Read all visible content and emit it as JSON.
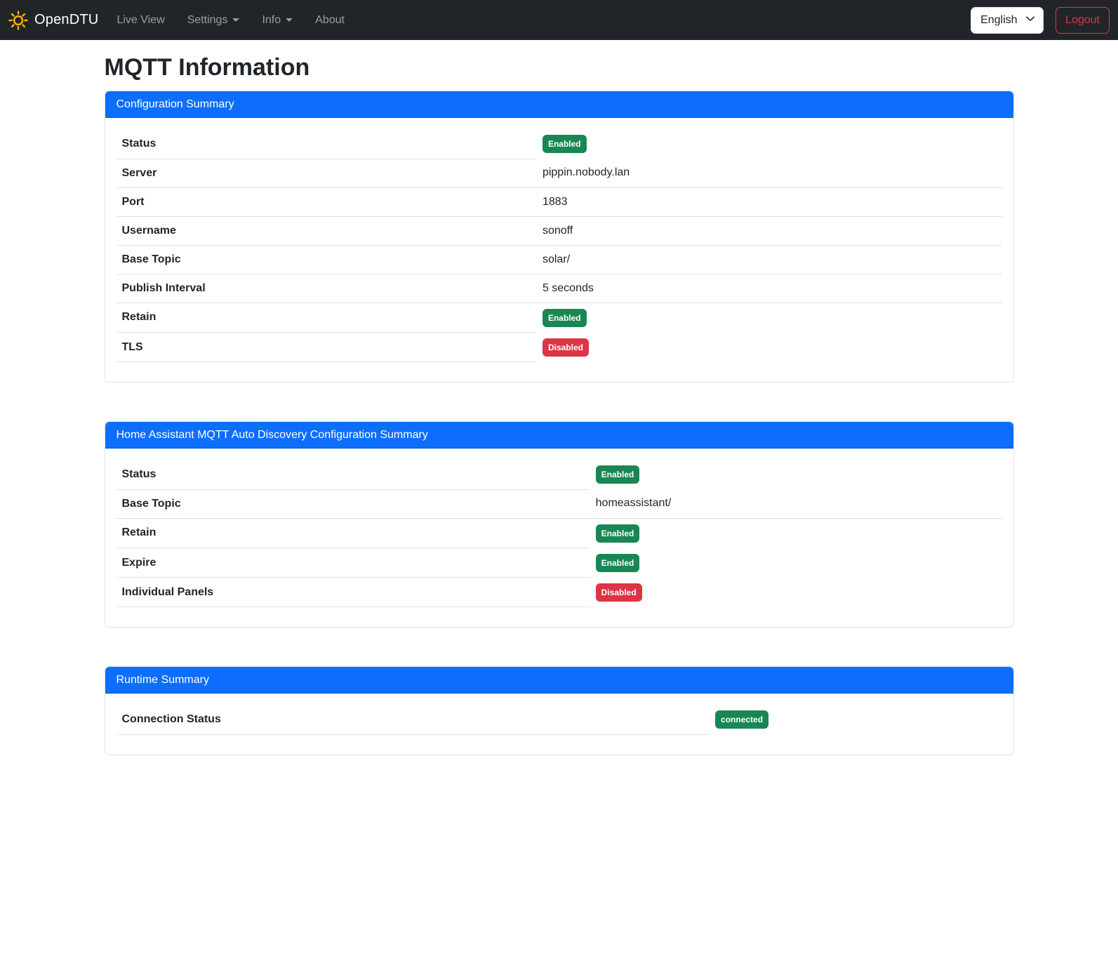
{
  "navbar": {
    "brand": "OpenDTU",
    "items": [
      {
        "label": "Live View",
        "has_caret": false
      },
      {
        "label": "Settings",
        "has_caret": true
      },
      {
        "label": "Info",
        "has_caret": true
      },
      {
        "label": "About",
        "has_caret": false
      }
    ],
    "language_selected": "English",
    "logout_label": "Logout"
  },
  "page": {
    "title": "MQTT Information"
  },
  "colors": {
    "primary": "#0d6efd",
    "success": "#198754",
    "danger": "#dc3545",
    "navbar_bg": "#212529",
    "brand_icon": "#feb406",
    "border": "#dee2e6"
  },
  "cards": [
    {
      "header": "Configuration Summary",
      "label_col_width": "47.5%",
      "rows": [
        {
          "label": "Status",
          "type": "badge",
          "badge": {
            "text": "Enabled",
            "variant": "success"
          }
        },
        {
          "label": "Server",
          "type": "text",
          "value": "pippin.nobody.lan"
        },
        {
          "label": "Port",
          "type": "text",
          "value": "1883"
        },
        {
          "label": "Username",
          "type": "text",
          "value": "sonoff"
        },
        {
          "label": "Base Topic",
          "type": "text",
          "value": "solar/"
        },
        {
          "label": "Publish Interval",
          "type": "text",
          "value": "5 seconds"
        },
        {
          "label": "Retain",
          "type": "badge",
          "badge": {
            "text": "Enabled",
            "variant": "success"
          }
        },
        {
          "label": "TLS",
          "type": "badge",
          "badge": {
            "text": "Disabled",
            "variant": "danger"
          }
        }
      ]
    },
    {
      "header": "Home Assistant MQTT Auto Discovery Configuration Summary",
      "label_col_width": "53.5%",
      "rows": [
        {
          "label": "Status",
          "type": "badge",
          "badge": {
            "text": "Enabled",
            "variant": "success"
          }
        },
        {
          "label": "Base Topic",
          "type": "text",
          "value": "homeassistant/"
        },
        {
          "label": "Retain",
          "type": "badge",
          "badge": {
            "text": "Enabled",
            "variant": "success"
          }
        },
        {
          "label": "Expire",
          "type": "badge",
          "badge": {
            "text": "Enabled",
            "variant": "success"
          }
        },
        {
          "label": "Individual Panels",
          "type": "badge",
          "badge": {
            "text": "Disabled",
            "variant": "danger"
          }
        }
      ]
    },
    {
      "header": "Runtime Summary",
      "label_col_width": "67%",
      "rows": [
        {
          "label": "Connection Status",
          "type": "badge",
          "badge": {
            "text": "connected",
            "variant": "success"
          }
        }
      ]
    }
  ]
}
